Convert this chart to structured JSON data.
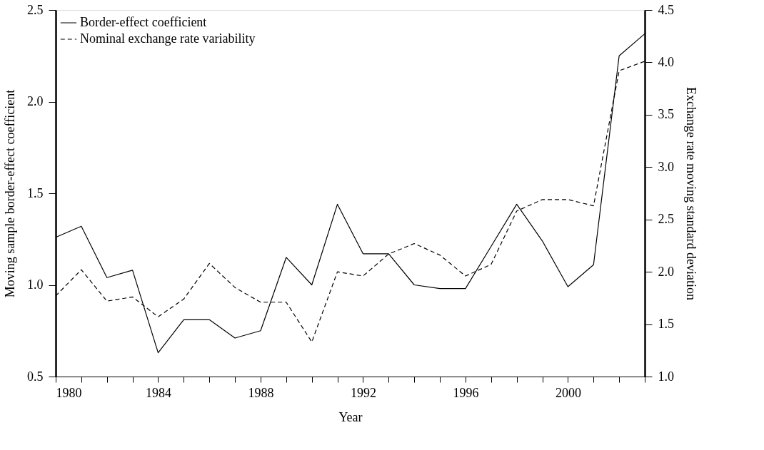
{
  "chart_data": {
    "type": "line",
    "xlabel": "Year",
    "ylabel": "Moving sample border-effect coefficient",
    "y2label": "Exchange rate moving standard deviation",
    "x": [
      1980,
      1981,
      1982,
      1983,
      1984,
      1985,
      1986,
      1987,
      1988,
      1989,
      1990,
      1991,
      1992,
      1993,
      1994,
      1995,
      1996,
      1997,
      1998,
      1999,
      2000,
      2001,
      2002,
      2003
    ],
    "xlim": [
      1980,
      2003
    ],
    "xticks": [
      1980,
      {
        "value": 1981,
        "label": null
      },
      {
        "value": 1982,
        "label": null
      },
      {
        "value": 1983,
        "label": null
      },
      1984,
      {
        "value": 1985,
        "label": null
      },
      {
        "value": 1986,
        "label": null
      },
      {
        "value": 1987,
        "label": null
      },
      1988,
      {
        "value": 1989,
        "label": null
      },
      {
        "value": 1990,
        "label": null
      },
      {
        "value": 1991,
        "label": null
      },
      1992,
      {
        "value": 1993,
        "label": null
      },
      {
        "value": 1994,
        "label": null
      },
      {
        "value": 1995,
        "label": null
      },
      1996,
      {
        "value": 1997,
        "label": null
      },
      {
        "value": 1998,
        "label": null
      },
      {
        "value": 1999,
        "label": null
      },
      2000,
      {
        "value": 2001,
        "label": null
      },
      {
        "value": 2002,
        "label": null
      },
      {
        "value": 2003,
        "label": null
      }
    ],
    "ylim": [
      0.5,
      2.5
    ],
    "yticks": [
      {
        "value": 0.5,
        "label": "0.5"
      },
      {
        "value": 1.0,
        "label": "1.0"
      },
      {
        "value": 1.5,
        "label": "1.5"
      },
      {
        "value": 2.0,
        "label": "2.0"
      },
      {
        "value": 2.5,
        "label": "2.5"
      }
    ],
    "y2lim": [
      1.0,
      4.5
    ],
    "y2ticks": [
      {
        "value": 1.0,
        "label": "1.0"
      },
      {
        "value": 1.5,
        "label": "1.5"
      },
      {
        "value": 2.0,
        "label": "2.0"
      },
      {
        "value": 2.5,
        "label": "2.5"
      },
      {
        "value": 3.0,
        "label": "3.0"
      },
      {
        "value": 3.5,
        "label": "3.5"
      },
      {
        "value": 4.0,
        "label": "4.0"
      },
      {
        "value": 4.5,
        "label": "4.5"
      }
    ],
    "grid": false,
    "legend": "top left",
    "marker": "none",
    "series": [
      {
        "name": "Border-effect coefficient",
        "color": "#000000",
        "line_style": "solid",
        "values": [
          1.26,
          1.32,
          1.04,
          1.08,
          0.63,
          0.81,
          0.81,
          0.71,
          0.75,
          1.15,
          1.0,
          1.44,
          1.17,
          1.17,
          1.0,
          0.98,
          0.98,
          1.21,
          1.44,
          1.24,
          0.99,
          1.11,
          2.25,
          2.37
        ]
      },
      {
        "name": "Nominal exchange rate variability",
        "color": "#000000",
        "line_style": "dashed",
        "axis": "y2",
        "values": [
          1.77,
          2.02,
          1.72,
          1.76,
          1.57,
          1.74,
          2.08,
          1.85,
          1.71,
          1.71,
          1.33,
          2.0,
          1.96,
          2.17,
          2.27,
          2.16,
          1.96,
          2.07,
          2.58,
          2.69,
          2.69,
          2.63,
          3.92,
          4.01
        ]
      }
    ]
  }
}
